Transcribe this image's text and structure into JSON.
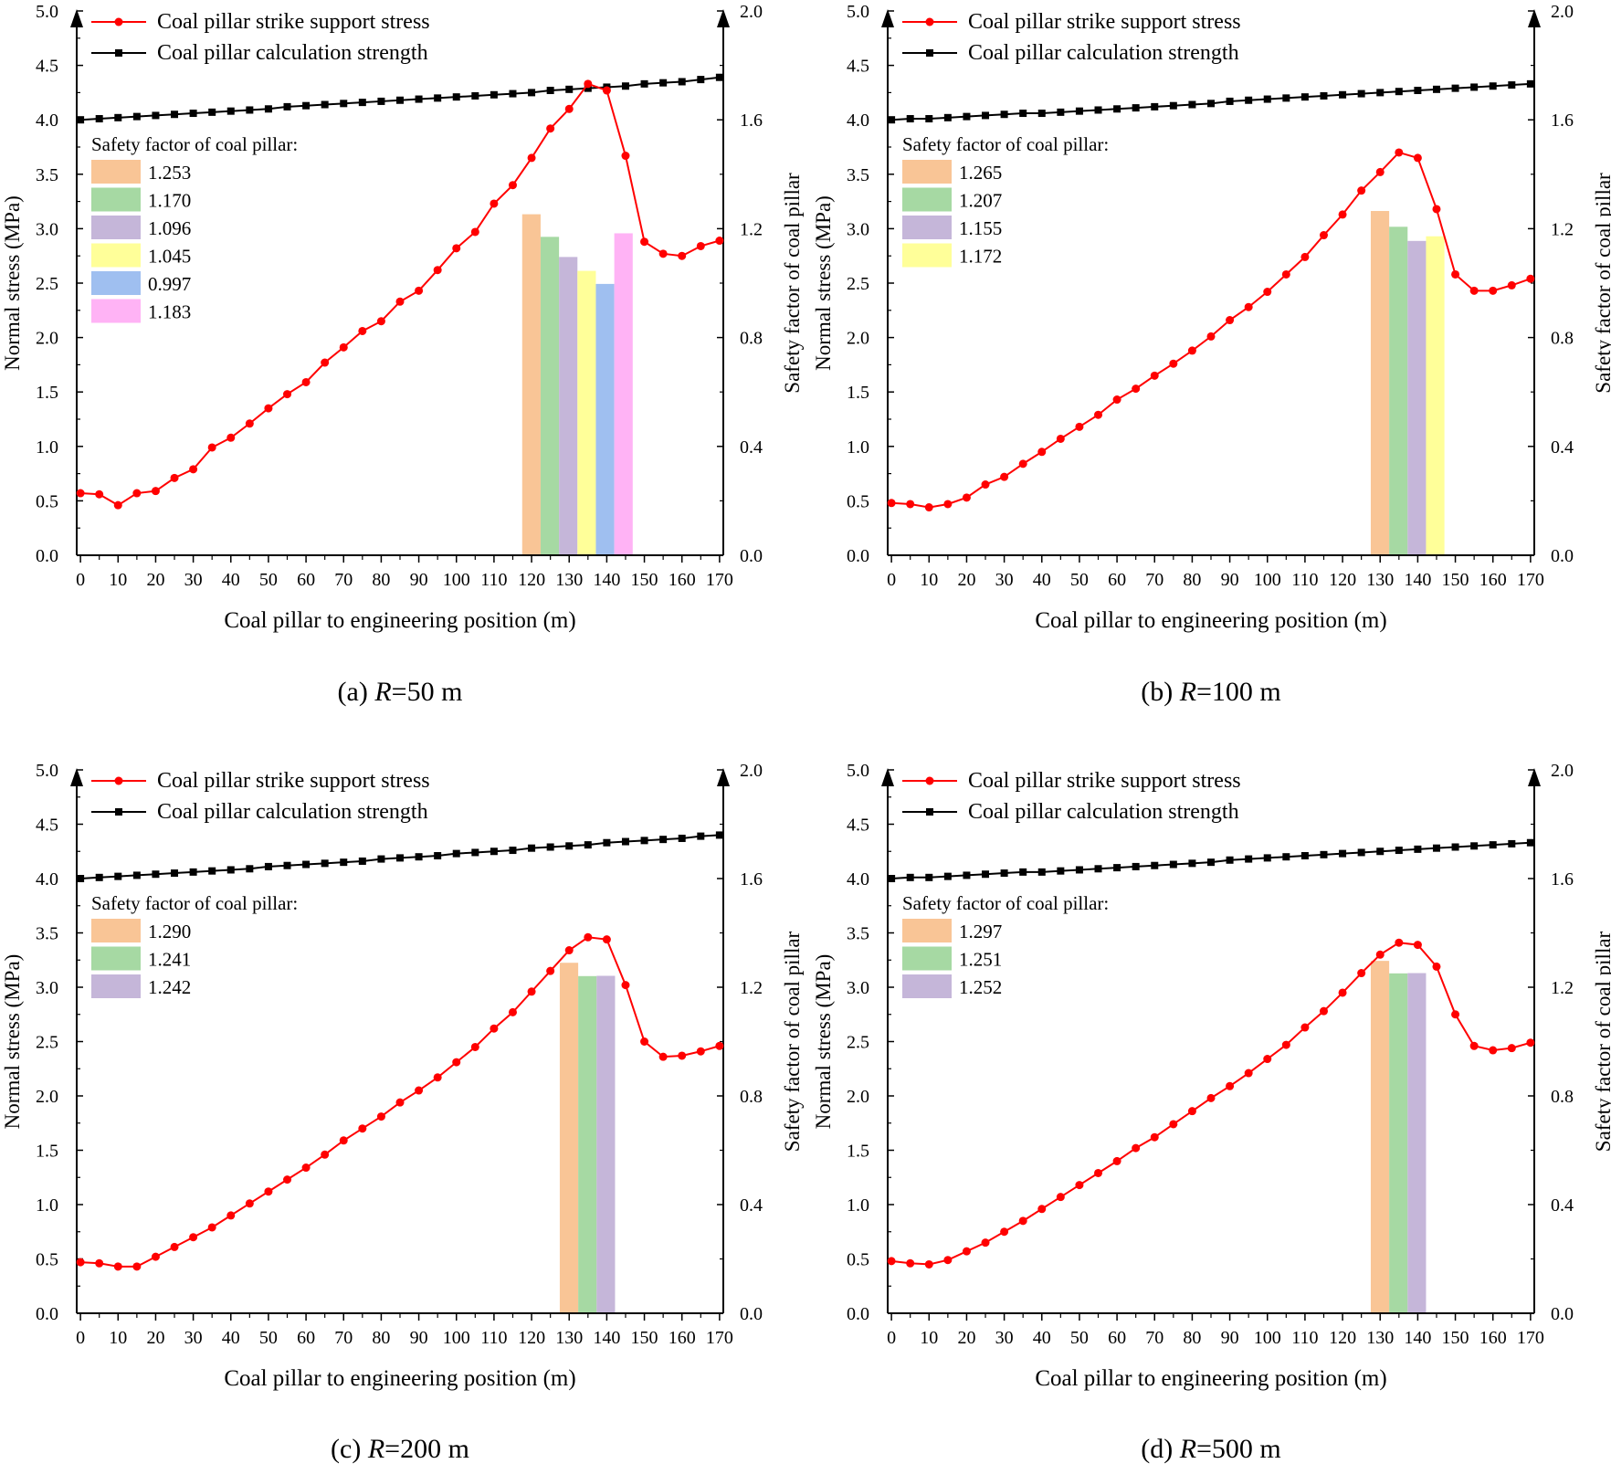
{
  "figure": {
    "legend_stress": "Coal pillar strike support stress",
    "legend_strength": "Coal pillar calculation strength",
    "sf_title": "Safety factor of coal pillar:",
    "xlabel": "Coal pillar to engineering position (m)",
    "ylabel_left": "Normal stress (MPa)",
    "ylabel_right": "Safety factor of coal pillar",
    "series_colors": {
      "stress": "#ff0000",
      "strength": "#000000"
    },
    "bar_colors": [
      "#f9c596",
      "#a6d9a3",
      "#c5b6d9",
      "#ffff99",
      "#9fbff0",
      "#ffb3f5"
    ]
  },
  "chart_data": [
    {
      "type": "line+bar",
      "caption_prefix": "(a) ",
      "caption_R": "R",
      "caption_suffix": "=50 m",
      "x": [
        0,
        5,
        10,
        15,
        20,
        25,
        30,
        35,
        40,
        45,
        50,
        55,
        60,
        65,
        70,
        75,
        80,
        85,
        90,
        95,
        100,
        105,
        110,
        115,
        120,
        125,
        130,
        135,
        140,
        145,
        150,
        155,
        160,
        165,
        170
      ],
      "stress": [
        0.57,
        0.56,
        0.46,
        0.57,
        0.59,
        0.71,
        0.79,
        0.99,
        1.08,
        1.21,
        1.35,
        1.48,
        1.59,
        1.77,
        1.91,
        2.06,
        2.15,
        2.33,
        2.43,
        2.62,
        2.82,
        2.97,
        3.23,
        3.4,
        3.65,
        3.92,
        4.1,
        4.33,
        4.27,
        3.67,
        2.88,
        2.77,
        2.75,
        2.84,
        2.89
      ],
      "strength": [
        4.0,
        4.01,
        4.02,
        4.03,
        4.04,
        4.05,
        4.06,
        4.07,
        4.08,
        4.09,
        4.1,
        4.12,
        4.13,
        4.14,
        4.15,
        4.16,
        4.17,
        4.18,
        4.19,
        4.2,
        4.21,
        4.22,
        4.23,
        4.24,
        4.25,
        4.27,
        4.28,
        4.29,
        4.3,
        4.31,
        4.33,
        4.34,
        4.35,
        4.37,
        4.39
      ],
      "bars": {
        "x_start": 117.5,
        "width": 4.9,
        "labels": [
          "1.253",
          "1.170",
          "1.096",
          "1.045",
          "0.997",
          "1.183"
        ],
        "values": [
          1.253,
          1.17,
          1.096,
          1.045,
          0.997,
          1.183
        ]
      },
      "ylim": [
        0,
        5
      ],
      "y2lim": [
        0,
        2
      ],
      "xlim": [
        -1,
        171
      ]
    },
    {
      "type": "line+bar",
      "caption_prefix": "(b) ",
      "caption_R": "R",
      "caption_suffix": "=100 m",
      "x": [
        0,
        5,
        10,
        15,
        20,
        25,
        30,
        35,
        40,
        45,
        50,
        55,
        60,
        65,
        70,
        75,
        80,
        85,
        90,
        95,
        100,
        105,
        110,
        115,
        120,
        125,
        130,
        135,
        140,
        145,
        150,
        155,
        160,
        165,
        170
      ],
      "stress": [
        0.48,
        0.47,
        0.44,
        0.47,
        0.53,
        0.65,
        0.72,
        0.84,
        0.95,
        1.07,
        1.18,
        1.29,
        1.43,
        1.53,
        1.65,
        1.76,
        1.88,
        2.01,
        2.16,
        2.28,
        2.42,
        2.58,
        2.74,
        2.94,
        3.13,
        3.35,
        3.52,
        3.7,
        3.65,
        3.18,
        2.58,
        2.43,
        2.43,
        2.48,
        2.54
      ],
      "strength": [
        4.0,
        4.01,
        4.01,
        4.02,
        4.03,
        4.04,
        4.05,
        4.06,
        4.06,
        4.07,
        4.08,
        4.09,
        4.1,
        4.11,
        4.12,
        4.13,
        4.14,
        4.15,
        4.17,
        4.18,
        4.19,
        4.2,
        4.21,
        4.22,
        4.23,
        4.24,
        4.25,
        4.26,
        4.27,
        4.28,
        4.29,
        4.3,
        4.31,
        4.32,
        4.33
      ],
      "bars": {
        "x_start": 127.5,
        "width": 4.9,
        "labels": [
          "1.265",
          "1.207",
          "1.155",
          "1.172"
        ],
        "values": [
          1.265,
          1.207,
          1.155,
          1.172
        ]
      },
      "ylim": [
        0,
        5
      ],
      "y2lim": [
        0,
        2
      ],
      "xlim": [
        -1,
        171
      ]
    },
    {
      "type": "line+bar",
      "caption_prefix": "(c) ",
      "caption_R": "R",
      "caption_suffix": "=200 m",
      "x": [
        0,
        5,
        10,
        15,
        20,
        25,
        30,
        35,
        40,
        45,
        50,
        55,
        60,
        65,
        70,
        75,
        80,
        85,
        90,
        95,
        100,
        105,
        110,
        115,
        120,
        125,
        130,
        135,
        140,
        145,
        150,
        155,
        160,
        165,
        170
      ],
      "stress": [
        0.47,
        0.46,
        0.43,
        0.43,
        0.52,
        0.61,
        0.7,
        0.79,
        0.9,
        1.01,
        1.12,
        1.23,
        1.34,
        1.46,
        1.59,
        1.7,
        1.81,
        1.94,
        2.05,
        2.17,
        2.31,
        2.45,
        2.62,
        2.77,
        2.96,
        3.15,
        3.34,
        3.46,
        3.44,
        3.02,
        2.5,
        2.36,
        2.37,
        2.41,
        2.46
      ],
      "strength": [
        4.0,
        4.01,
        4.02,
        4.03,
        4.04,
        4.05,
        4.06,
        4.07,
        4.08,
        4.09,
        4.11,
        4.12,
        4.13,
        4.14,
        4.15,
        4.16,
        4.18,
        4.19,
        4.2,
        4.21,
        4.23,
        4.24,
        4.25,
        4.26,
        4.28,
        4.29,
        4.3,
        4.31,
        4.33,
        4.34,
        4.35,
        4.36,
        4.37,
        4.39,
        4.4
      ],
      "bars": {
        "x_start": 127.5,
        "width": 4.9,
        "labels": [
          "1.290",
          "1.241",
          "1.242"
        ],
        "values": [
          1.29,
          1.241,
          1.242
        ]
      },
      "ylim": [
        0,
        5
      ],
      "y2lim": [
        0,
        2
      ],
      "xlim": [
        -1,
        171
      ]
    },
    {
      "type": "line+bar",
      "caption_prefix": "(d) ",
      "caption_R": "R",
      "caption_suffix": "=500 m",
      "x": [
        0,
        5,
        10,
        15,
        20,
        25,
        30,
        35,
        40,
        45,
        50,
        55,
        60,
        65,
        70,
        75,
        80,
        85,
        90,
        95,
        100,
        105,
        110,
        115,
        120,
        125,
        130,
        135,
        140,
        145,
        150,
        155,
        160,
        165,
        170
      ],
      "stress": [
        0.48,
        0.46,
        0.45,
        0.49,
        0.57,
        0.65,
        0.75,
        0.85,
        0.96,
        1.07,
        1.18,
        1.29,
        1.4,
        1.52,
        1.62,
        1.74,
        1.86,
        1.98,
        2.09,
        2.21,
        2.34,
        2.47,
        2.63,
        2.78,
        2.95,
        3.13,
        3.3,
        3.41,
        3.39,
        3.19,
        2.75,
        2.46,
        2.42,
        2.44,
        2.49
      ],
      "strength": [
        4.0,
        4.01,
        4.01,
        4.02,
        4.03,
        4.04,
        4.05,
        4.06,
        4.06,
        4.07,
        4.08,
        4.09,
        4.1,
        4.11,
        4.12,
        4.13,
        4.14,
        4.15,
        4.17,
        4.18,
        4.19,
        4.2,
        4.21,
        4.22,
        4.23,
        4.24,
        4.25,
        4.26,
        4.27,
        4.28,
        4.29,
        4.3,
        4.31,
        4.32,
        4.33
      ],
      "bars": {
        "x_start": 127.5,
        "width": 4.9,
        "labels": [
          "1.297",
          "1.251",
          "1.252"
        ],
        "values": [
          1.297,
          1.251,
          1.252
        ]
      },
      "ylim": [
        0,
        5
      ],
      "y2lim": [
        0,
        2
      ],
      "xlim": [
        -1,
        171
      ]
    }
  ]
}
